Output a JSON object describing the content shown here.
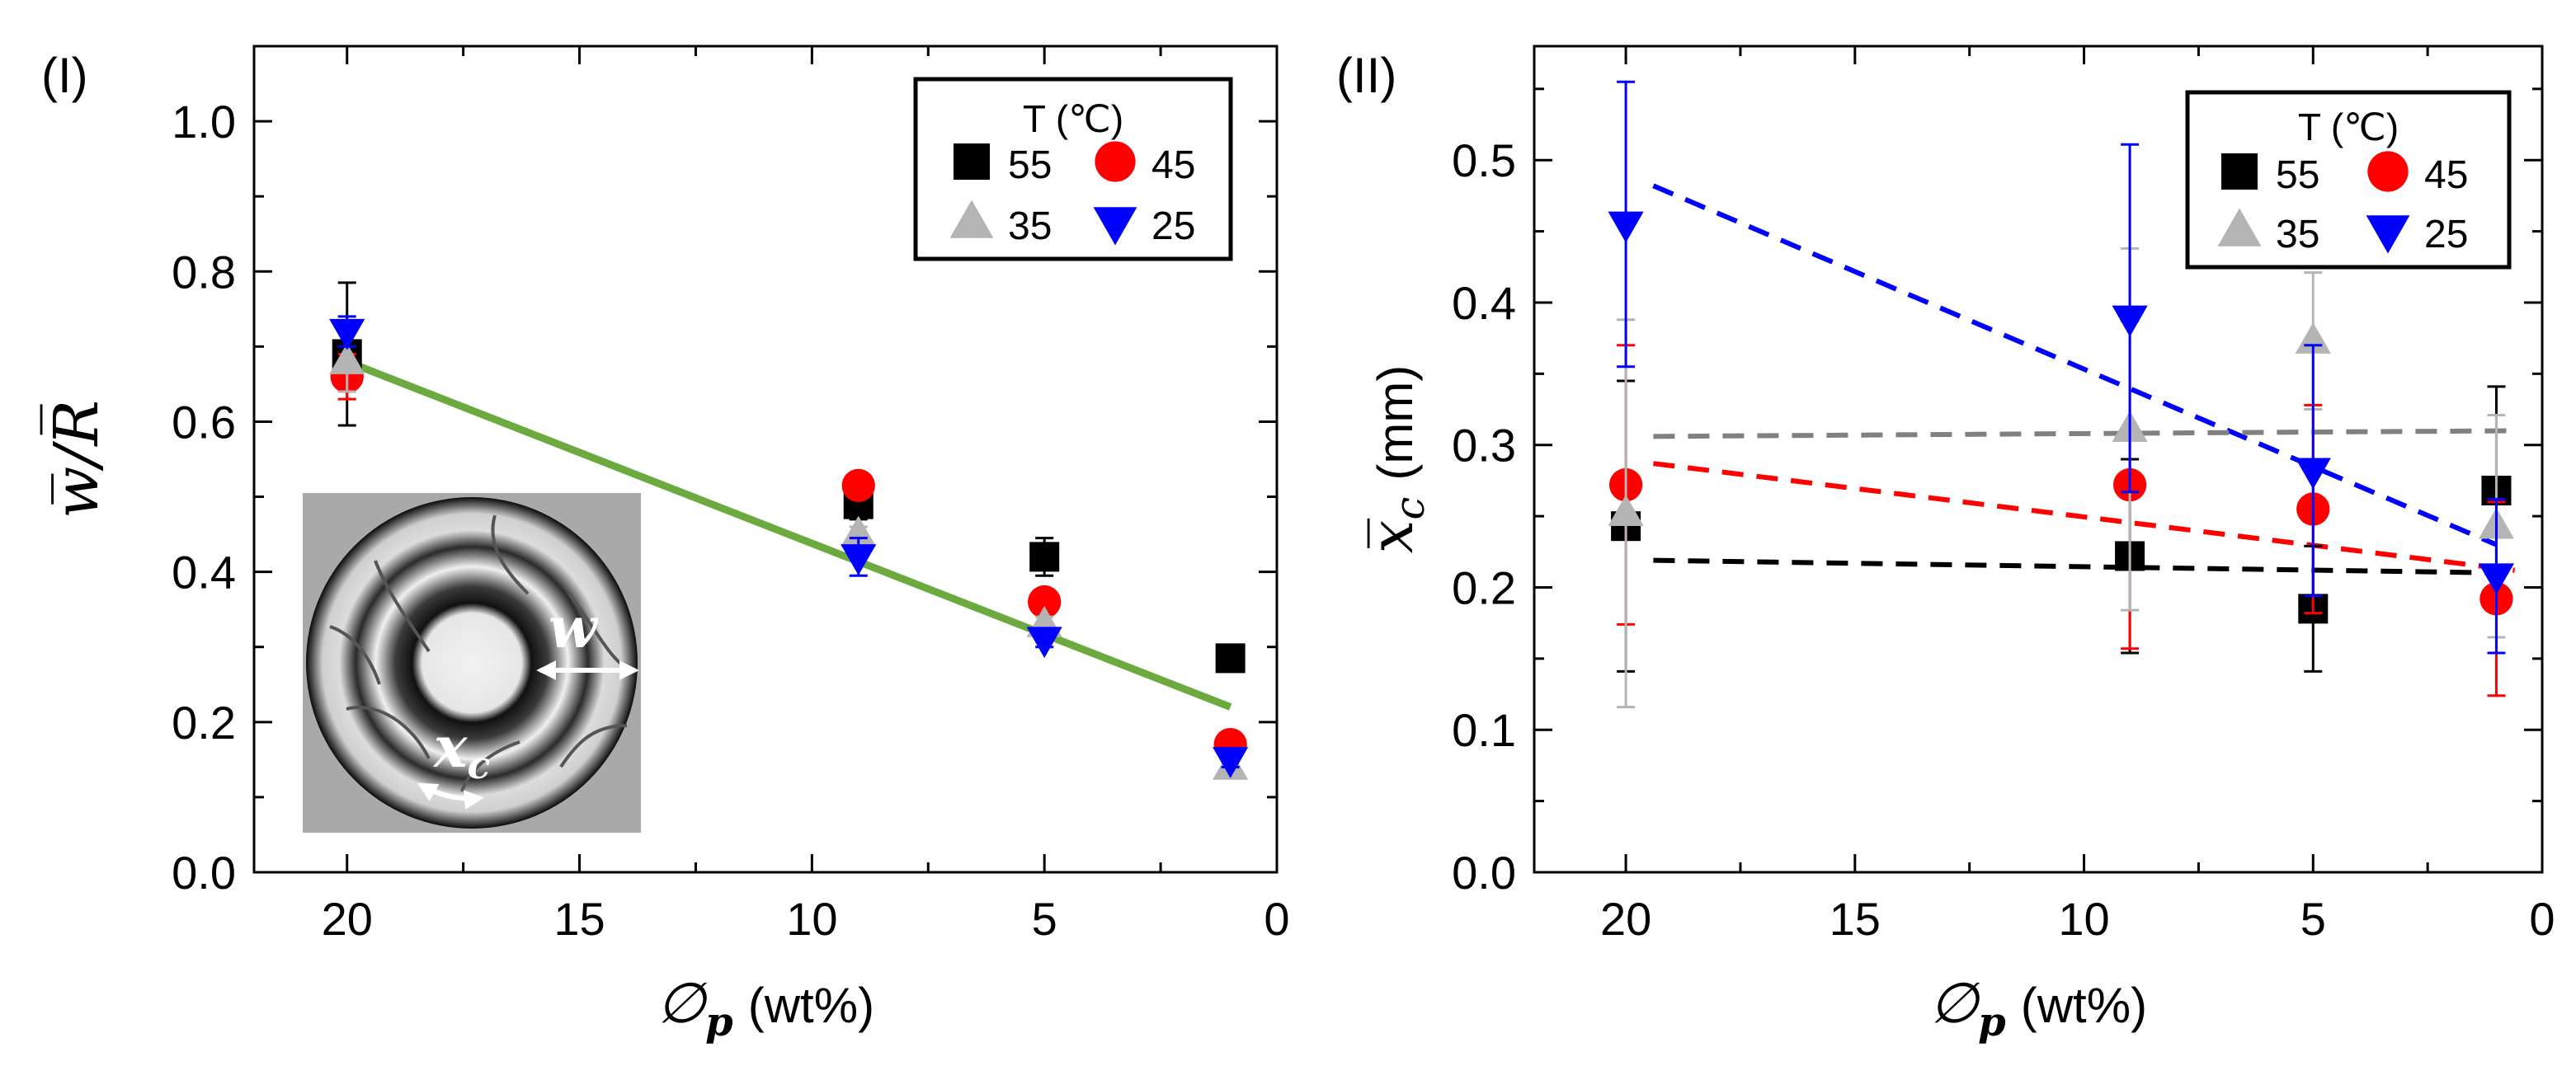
{
  "figure_labels": {
    "left": "(I)",
    "right": "(II)"
  },
  "legend": {
    "title": "T (℃)",
    "entries": [
      {
        "label": "55",
        "marker": "square",
        "color": "#000000"
      },
      {
        "label": "45",
        "marker": "circle",
        "color": "#ff0000"
      },
      {
        "label": "35",
        "marker": "triangle-up",
        "color": "#b4b4b4"
      },
      {
        "label": "25",
        "marker": "triangle-down",
        "color": "#0000ff"
      }
    ]
  },
  "inset": {
    "w_label": "w",
    "xc_label": "x",
    "xc_sub": "c"
  },
  "axis_text": {
    "left_ylabel": "w̅/R̅",
    "right_ylabel_var": "x̅",
    "right_ylabel_sub": "c",
    "right_ylabel_unit": "(mm)",
    "xlabel_var": "∅",
    "xlabel_sub": "p",
    "xlabel_unit": "(wt%)"
  },
  "chart_data": [
    {
      "type": "scatter",
      "panel": "(I)",
      "xlabel": "∅p (wt%)",
      "ylabel": "w̅/R̅",
      "xlim": [
        22,
        0
      ],
      "ylim": [
        0,
        1.1
      ],
      "xticks": [
        "20",
        "15",
        "10",
        "5",
        "0"
      ],
      "yticks": [
        "0.0",
        "0.2",
        "0.4",
        "0.6",
        "0.8",
        "1.0"
      ],
      "x": [
        20,
        9,
        5,
        1
      ],
      "series": [
        {
          "name": "55",
          "color": "#000000",
          "marker": "square",
          "values": [
            0.69,
            0.49,
            0.42,
            0.285
          ],
          "errors": [
            0.095,
            0.02,
            0.025,
            0.0
          ]
        },
        {
          "name": "45",
          "color": "#ff0000",
          "marker": "circle",
          "values": [
            0.66,
            0.515,
            0.36,
            0.17
          ],
          "errors": [
            0.03,
            0.01,
            0.01,
            0.0
          ]
        },
        {
          "name": "35",
          "color": "#b4b4b4",
          "marker": "triangle-up",
          "values": [
            0.68,
            0.45,
            0.33,
            0.14
          ],
          "errors": [
            0.04,
            0.01,
            0.01,
            0.0
          ]
        },
        {
          "name": "25",
          "color": "#0000ff",
          "marker": "triangle-down",
          "values": [
            0.72,
            0.42,
            0.31,
            0.15
          ],
          "errors": [
            0.02,
            0.025,
            0.01,
            0.01
          ]
        }
      ],
      "fit_lines": [
        {
          "name": "trend",
          "color": "#6aaa3e",
          "dash": false,
          "x": [
            20,
            1
          ],
          "y": [
            0.68,
            0.22
          ]
        }
      ]
    },
    {
      "type": "scatter",
      "panel": "(II)",
      "xlabel": "∅p (wt%)",
      "ylabel": "x̅c (mm)",
      "xlim": [
        22,
        0
      ],
      "ylim": [
        0,
        0.58
      ],
      "xticks": [
        "20",
        "15",
        "10",
        "5",
        "0"
      ],
      "yticks": [
        "0.0",
        "0.1",
        "0.2",
        "0.3",
        "0.4",
        "0.5"
      ],
      "x": [
        20,
        9,
        5,
        1
      ],
      "series": [
        {
          "name": "55",
          "color": "#000000",
          "marker": "square",
          "values": [
            0.243,
            0.222,
            0.185,
            0.268
          ],
          "errors": [
            0.102,
            0.068,
            0.044,
            0.073
          ]
        },
        {
          "name": "45",
          "color": "#ff0000",
          "marker": "circle",
          "values": [
            0.272,
            0.272,
            0.255,
            0.192
          ],
          "errors": [
            0.098,
            0.115,
            0.073,
            0.068
          ]
        },
        {
          "name": "35",
          "color": "#b4b4b4",
          "marker": "triangle-up",
          "values": [
            0.252,
            0.311,
            0.373,
            0.243
          ],
          "errors": [
            0.136,
            0.127,
            0.048,
            0.078
          ]
        },
        {
          "name": "25",
          "color": "#0000ff",
          "marker": "triangle-down",
          "values": [
            0.455,
            0.389,
            0.282,
            0.208
          ],
          "errors": [
            0.1,
            0.122,
            0.088,
            0.054
          ]
        }
      ],
      "fit_lines": [
        {
          "name": "25",
          "color": "#0000ff",
          "dash": true,
          "x": [
            19.4,
            1
          ],
          "y": [
            0.482,
            0.23
          ]
        },
        {
          "name": "35",
          "color": "#808080",
          "dash": true,
          "x": [
            19.4,
            0.6
          ],
          "y": [
            0.306,
            0.31
          ]
        },
        {
          "name": "45",
          "color": "#ff0000",
          "dash": true,
          "x": [
            19.4,
            0.6
          ],
          "y": [
            0.287,
            0.212
          ]
        },
        {
          "name": "55",
          "color": "#000000",
          "dash": true,
          "x": [
            19.4,
            0.6
          ],
          "y": [
            0.219,
            0.21
          ]
        }
      ]
    }
  ]
}
